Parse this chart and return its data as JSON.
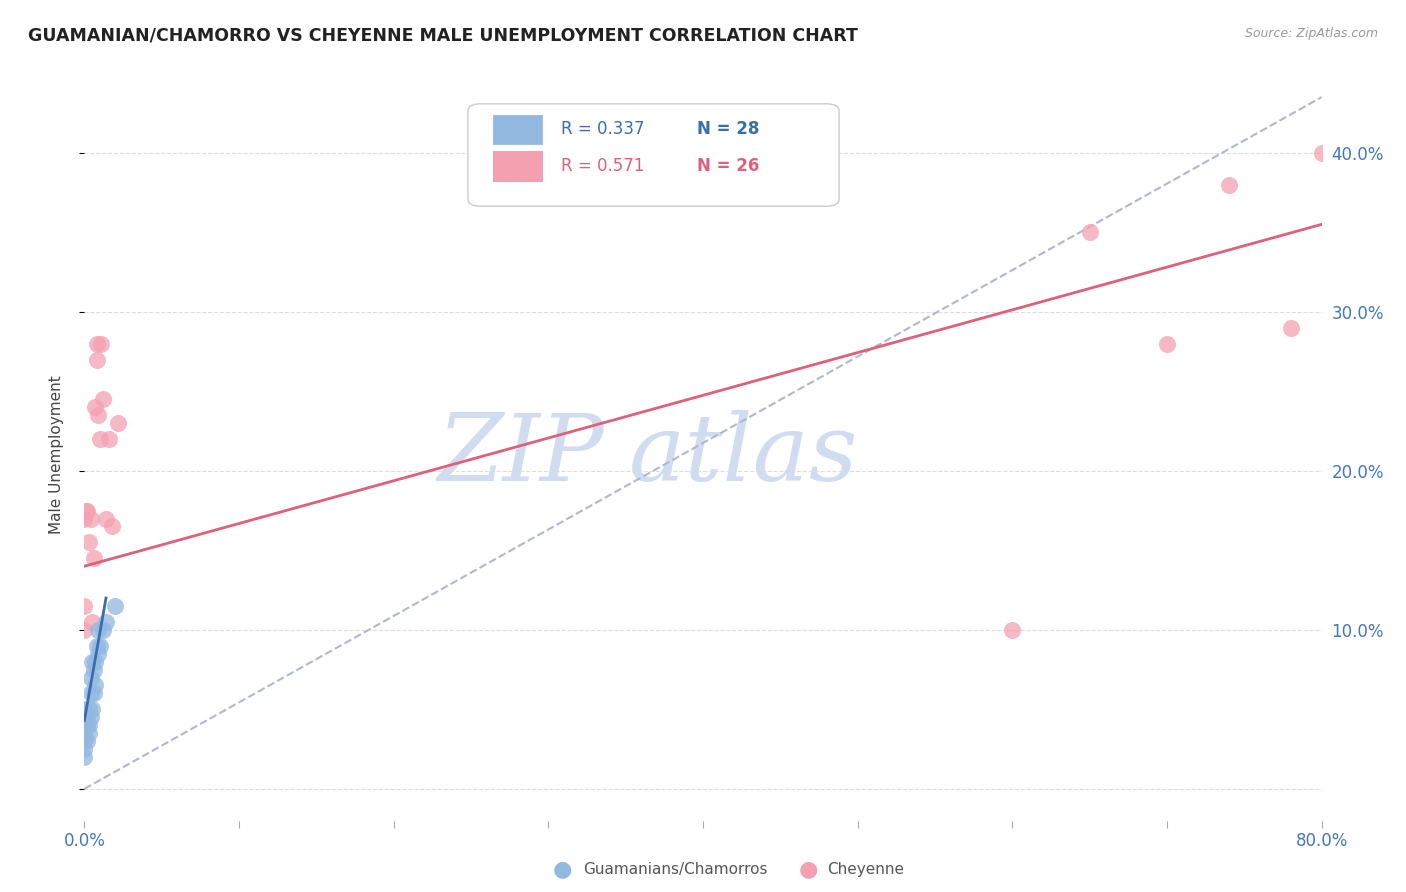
{
  "title": "GUAMANIAN/CHAMORRO VS CHEYENNE MALE UNEMPLOYMENT CORRELATION CHART",
  "source": "Source: ZipAtlas.com",
  "ylabel": "Male Unemployment",
  "x_min": 0.0,
  "x_max": 0.8,
  "y_min": -0.02,
  "y_max": 0.44,
  "right_yticks": [
    0.1,
    0.2,
    0.3,
    0.4
  ],
  "right_yticklabels": [
    "10.0%",
    "20.0%",
    "30.0%",
    "40.0%"
  ],
  "legend_r1": "R = 0.337",
  "legend_n1": "N = 28",
  "legend_r2": "R = 0.571",
  "legend_n2": "N = 26",
  "blue_color": "#92b8e0",
  "pink_color": "#f4a0b0",
  "blue_line_color": "#3a6db0",
  "pink_line_color": "#e0607a",
  "dash_line_color": "#b0b8d0",
  "watermark_zip": "ZIP",
  "watermark_atlas": "atlas",
  "watermark_color": "#d0ddf0",
  "blue_scatter_x": [
    0.0,
    0.0,
    0.0,
    0.0,
    0.0,
    0.0,
    0.002,
    0.002,
    0.002,
    0.003,
    0.003,
    0.003,
    0.004,
    0.004,
    0.004,
    0.005,
    0.005,
    0.006,
    0.006,
    0.007,
    0.007,
    0.008,
    0.009,
    0.009,
    0.01,
    0.012,
    0.014,
    0.02
  ],
  "blue_scatter_y": [
    0.02,
    0.025,
    0.03,
    0.035,
    0.04,
    0.05,
    0.03,
    0.04,
    0.045,
    0.035,
    0.04,
    0.05,
    0.045,
    0.06,
    0.07,
    0.05,
    0.08,
    0.06,
    0.075,
    0.065,
    0.08,
    0.09,
    0.085,
    0.1,
    0.09,
    0.1,
    0.105,
    0.115
  ],
  "pink_scatter_x": [
    0.0,
    0.0,
    0.0,
    0.001,
    0.002,
    0.003,
    0.004,
    0.005,
    0.006,
    0.007,
    0.008,
    0.008,
    0.009,
    0.01,
    0.011,
    0.012,
    0.014,
    0.016,
    0.018,
    0.022,
    0.6,
    0.65,
    0.7,
    0.74,
    0.78,
    0.8
  ],
  "pink_scatter_y": [
    0.1,
    0.115,
    0.17,
    0.175,
    0.175,
    0.155,
    0.17,
    0.105,
    0.145,
    0.24,
    0.27,
    0.28,
    0.235,
    0.22,
    0.28,
    0.245,
    0.17,
    0.22,
    0.165,
    0.23,
    0.1,
    0.35,
    0.28,
    0.38,
    0.29,
    0.4
  ],
  "blue_line_x0": 0.0,
  "blue_line_x1": 0.014,
  "blue_line_y0": 0.043,
  "blue_line_y1": 0.12,
  "pink_line_x0": 0.0,
  "pink_line_x1": 0.8,
  "pink_line_y0": 0.14,
  "pink_line_y1": 0.355,
  "dash_line_x0": 0.0,
  "dash_line_x1": 0.8,
  "dash_line_y0": 0.0,
  "dash_line_y1": 0.435
}
